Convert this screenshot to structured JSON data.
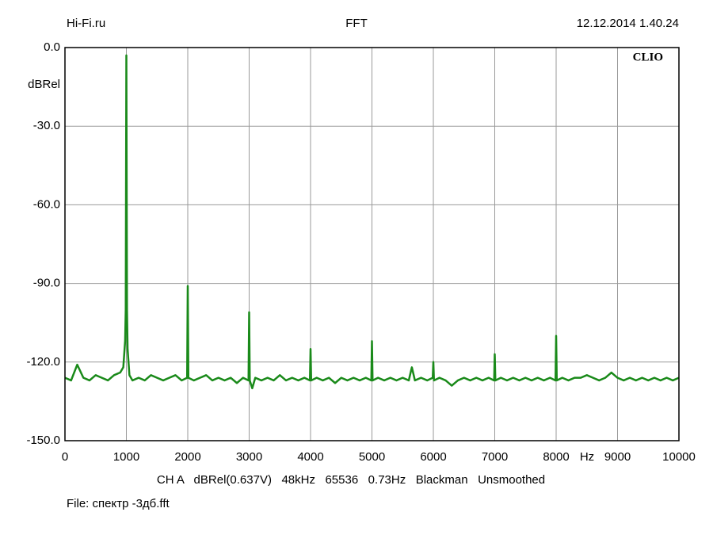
{
  "chart_data": {
    "type": "line",
    "header_left": "Hi-Fi.ru",
    "title": "FFT",
    "header_right": "12.12.2014 1.40.24",
    "brand": "CLIO",
    "y_label": "dBRel",
    "x_label": "Hz",
    "settings": "CH A   dBRel(0.637V)   48kHz   65536   0.73Hz   Blackman   Unsmoothed",
    "file_label": "File: спектр -3дб.fft",
    "xlim": [
      0,
      10000
    ],
    "xticks": [
      0,
      1000,
      2000,
      3000,
      4000,
      5000,
      6000,
      7000,
      8000,
      9000,
      10000
    ],
    "ylim": [
      -150,
      0
    ],
    "yticks": [
      {
        "value": 0,
        "label": "0.0"
      },
      {
        "value": -30,
        "label": "-30.0"
      },
      {
        "value": -60,
        "label": "-60.0"
      },
      {
        "value": -90,
        "label": "-90.0"
      },
      {
        "value": -120,
        "label": "-120.0"
      },
      {
        "value": -150,
        "label": "-150.0"
      }
    ],
    "grid": true,
    "x": [
      0,
      100,
      200,
      300,
      400,
      500,
      600,
      700,
      800,
      900,
      950,
      980,
      990,
      1000,
      1010,
      1020,
      1050,
      1100,
      1200,
      1300,
      1400,
      1500,
      1600,
      1700,
      1800,
      1900,
      1990,
      2000,
      2010,
      2100,
      2200,
      2300,
      2400,
      2500,
      2600,
      2700,
      2800,
      2900,
      2990,
      3000,
      3010,
      3050,
      3100,
      3200,
      3300,
      3400,
      3500,
      3600,
      3700,
      3800,
      3900,
      3990,
      4000,
      4010,
      4100,
      4200,
      4300,
      4400,
      4500,
      4600,
      4700,
      4800,
      4900,
      4990,
      5000,
      5010,
      5100,
      5200,
      5300,
      5400,
      5500,
      5600,
      5650,
      5700,
      5800,
      5900,
      5990,
      6000,
      6010,
      6100,
      6200,
      6300,
      6400,
      6500,
      6600,
      6700,
      6800,
      6900,
      6990,
      7000,
      7010,
      7100,
      7200,
      7300,
      7400,
      7500,
      7600,
      7700,
      7800,
      7900,
      7990,
      8000,
      8010,
      8100,
      8200,
      8300,
      8400,
      8500,
      8600,
      8700,
      8800,
      8900,
      9000,
      9100,
      9200,
      9300,
      9400,
      9500,
      9600,
      9700,
      9800,
      9900,
      10000
    ],
    "series": [
      {
        "color": "#1a8a1a",
        "values": [
          -126,
          -127,
          -121,
          -126,
          -127,
          -125,
          -126,
          -127,
          -125,
          -124,
          -122,
          -112,
          -100,
          -3,
          -100,
          -115,
          -125,
          -127,
          -126,
          -127,
          -125,
          -126,
          -127,
          -126,
          -125,
          -127,
          -126,
          -91,
          -126,
          -127,
          -126,
          -125,
          -127,
          -126,
          -127,
          -126,
          -128,
          -126,
          -127,
          -101,
          -127,
          -130,
          -126,
          -127,
          -126,
          -127,
          -125,
          -127,
          -126,
          -127,
          -126,
          -127,
          -115,
          -127,
          -126,
          -127,
          -126,
          -128,
          -126,
          -127,
          -126,
          -127,
          -126,
          -127,
          -112,
          -127,
          -126,
          -127,
          -126,
          -127,
          -126,
          -127,
          -122,
          -127,
          -126,
          -127,
          -126,
          -120,
          -127,
          -126,
          -127,
          -129,
          -127,
          -126,
          -127,
          -126,
          -127,
          -126,
          -127,
          -117,
          -127,
          -126,
          -127,
          -126,
          -127,
          -126,
          -127,
          -126,
          -127,
          -126,
          -127,
          -110,
          -127,
          -126,
          -127,
          -126,
          -126,
          -125,
          -126,
          -127,
          -126,
          -124,
          -126,
          -127,
          -126,
          -127,
          -126,
          -127,
          -126,
          -127,
          -126,
          -127,
          -126
        ]
      }
    ]
  }
}
